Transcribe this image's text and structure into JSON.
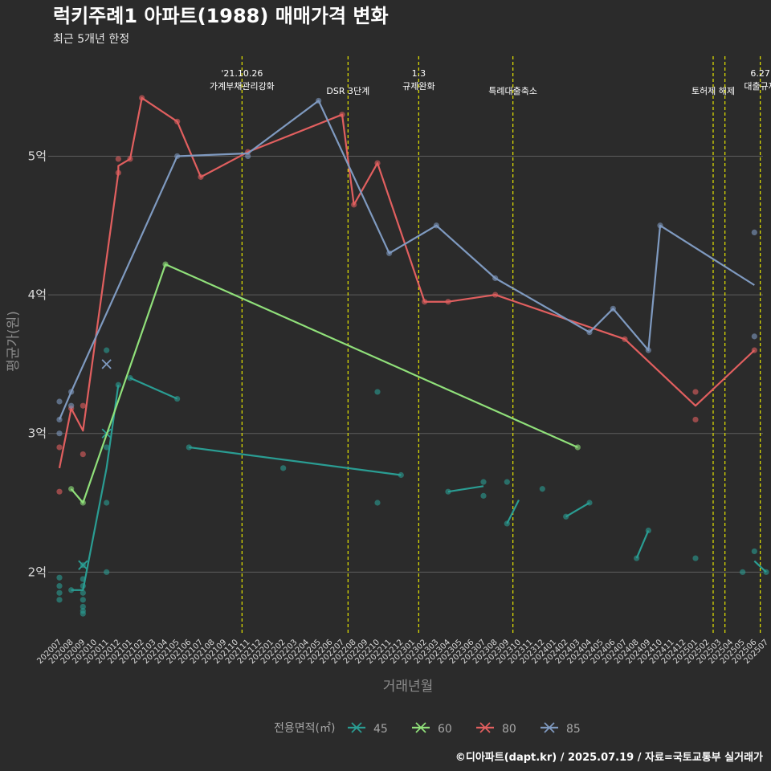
{
  "chart_data": {
    "type": "line",
    "title": "럭키주례1 아파트(1988) 매매가격 변화",
    "subtitle": "최근 5개년 한정",
    "xlabel": "거래년월",
    "ylabel": "평균가(원)",
    "caption": "©디아파트(dapt.kr) / 2025.07.19 / 자료=국토교통부 실거래가",
    "legend_title": "전용면적(㎡)",
    "legend_position": "bottom",
    "ylim": [
      1.55,
      5.75
    ],
    "yticks": [
      {
        "value": 2,
        "label": "2억"
      },
      {
        "value": 3,
        "label": "3억"
      },
      {
        "value": 4,
        "label": "4억"
      },
      {
        "value": 5,
        "label": "5억"
      }
    ],
    "x_categories": [
      "202007",
      "202008",
      "202009",
      "202010",
      "202011",
      "202012",
      "202101",
      "202102",
      "202103",
      "202104",
      "202105",
      "202106",
      "202107",
      "202108",
      "202109",
      "202110",
      "202111",
      "202112",
      "202201",
      "202202",
      "202203",
      "202204",
      "202205",
      "202206",
      "202207",
      "202208",
      "202209",
      "202210",
      "202211",
      "202212",
      "202301",
      "202302",
      "202303",
      "202304",
      "202305",
      "202306",
      "202307",
      "202308",
      "202309",
      "202310",
      "202311",
      "202312",
      "202401",
      "202402",
      "202403",
      "202404",
      "202405",
      "202406",
      "202407",
      "202408",
      "202409",
      "202410",
      "202411",
      "202412",
      "202501",
      "202502",
      "202503",
      "202504",
      "202505",
      "202506",
      "202507"
    ],
    "events": [
      {
        "x": 15.5,
        "lines": [
          "'21.10.26",
          "가계부채관리강화"
        ]
      },
      {
        "x": 24.5,
        "lines": [
          "DSR 3단계"
        ]
      },
      {
        "x": 30.5,
        "lines": [
          "1.3",
          "규제완화"
        ]
      },
      {
        "x": 38.5,
        "lines": [
          "특례대출축소"
        ]
      },
      {
        "x": 55.5,
        "lines": [
          "토허제 해제"
        ]
      },
      {
        "x": 56.5,
        "lines": []
      },
      {
        "x": 59.5,
        "lines": [
          "6.27",
          "대출규제"
        ]
      }
    ],
    "series": [
      {
        "name": "45",
        "color": "#2a9d93",
        "line": [
          [
            1,
            1.87
          ],
          [
            2,
            1.87
          ],
          [
            4,
            2.75
          ],
          [
            5,
            3.35
          ],
          [
            6,
            3.4
          ],
          [
            10,
            3.25
          ],
          [
            11,
            2.9
          ],
          [
            29,
            2.7
          ],
          [
            33,
            2.58
          ],
          [
            36,
            2.62
          ],
          [
            38,
            2.35
          ],
          [
            39,
            2.52
          ],
          [
            43,
            2.4
          ],
          [
            45,
            2.5
          ],
          [
            49,
            2.1
          ],
          [
            50,
            2.3
          ],
          [
            59,
            2.08
          ],
          [
            60,
            2.0
          ]
        ],
        "line_breaks": [
          4,
          6,
          8,
          10,
          12,
          14,
          16
        ],
        "points": [
          [
            0,
            1.96
          ],
          [
            0,
            1.9
          ],
          [
            0,
            1.85
          ],
          [
            0,
            1.8
          ],
          [
            1,
            1.87
          ],
          [
            2,
            2.05
          ],
          [
            2,
            1.95
          ],
          [
            2,
            1.9
          ],
          [
            2,
            1.85
          ],
          [
            2,
            1.8
          ],
          [
            2,
            1.75
          ],
          [
            2,
            1.72
          ],
          [
            2,
            1.7
          ],
          [
            4,
            3.6
          ],
          [
            4,
            2.9
          ],
          [
            4,
            2.5
          ],
          [
            4,
            2.0
          ],
          [
            5,
            3.35
          ],
          [
            6,
            3.4
          ],
          [
            10,
            3.25
          ],
          [
            11,
            2.9
          ],
          [
            19,
            2.75
          ],
          [
            27,
            3.3
          ],
          [
            27,
            2.5
          ],
          [
            29,
            2.7
          ],
          [
            33,
            2.58
          ],
          [
            36,
            2.65
          ],
          [
            36,
            2.55
          ],
          [
            38,
            2.65
          ],
          [
            38,
            2.35
          ],
          [
            41,
            2.6
          ],
          [
            43,
            2.4
          ],
          [
            45,
            2.5
          ],
          [
            49,
            2.1
          ],
          [
            50,
            2.3
          ],
          [
            54,
            2.1
          ],
          [
            58,
            2.0
          ],
          [
            59,
            2.15
          ],
          [
            60,
            2.0
          ]
        ],
        "x_marks": [
          [
            2,
            2.05
          ],
          [
            4,
            3.0
          ]
        ]
      },
      {
        "name": "60",
        "color": "#90e07a",
        "line": [
          [
            1,
            2.6
          ],
          [
            2,
            2.5
          ],
          [
            9,
            4.22
          ],
          [
            44,
            2.9
          ]
        ],
        "line_breaks": [],
        "points": [
          [
            1,
            2.6
          ],
          [
            2,
            2.5
          ],
          [
            9,
            4.22
          ],
          [
            44,
            2.9
          ]
        ],
        "x_marks": []
      },
      {
        "name": "80",
        "color": "#e15f5f",
        "line": [
          [
            0,
            2.75
          ],
          [
            1,
            3.18
          ],
          [
            2,
            3.02
          ],
          [
            5,
            4.88
          ],
          [
            5,
            4.93
          ],
          [
            6,
            4.98
          ],
          [
            7,
            5.42
          ],
          [
            10,
            5.25
          ],
          [
            12,
            4.85
          ],
          [
            16,
            5.03
          ],
          [
            24,
            5.3
          ],
          [
            25,
            4.65
          ],
          [
            27,
            4.95
          ],
          [
            31,
            3.95
          ],
          [
            33,
            3.95
          ],
          [
            37,
            4.0
          ],
          [
            48,
            3.68
          ],
          [
            54,
            3.2
          ],
          [
            59,
            3.6
          ]
        ],
        "line_breaks": [],
        "points": [
          [
            0,
            2.9
          ],
          [
            0,
            2.58
          ],
          [
            1,
            3.18
          ],
          [
            2,
            3.2
          ],
          [
            2,
            2.85
          ],
          [
            5,
            4.98
          ],
          [
            5,
            4.88
          ],
          [
            6,
            4.98
          ],
          [
            7,
            5.42
          ],
          [
            10,
            5.25
          ],
          [
            12,
            4.85
          ],
          [
            16,
            5.03
          ],
          [
            24,
            5.3
          ],
          [
            25,
            4.65
          ],
          [
            27,
            4.95
          ],
          [
            31,
            3.95
          ],
          [
            33,
            3.95
          ],
          [
            37,
            4.0
          ],
          [
            48,
            3.68
          ],
          [
            54,
            3.3
          ],
          [
            54,
            3.1
          ],
          [
            59,
            3.6
          ]
        ],
        "x_marks": []
      },
      {
        "name": "85",
        "color": "#7f9ac0",
        "line": [
          [
            0,
            3.1
          ],
          [
            1,
            3.3
          ],
          [
            10,
            5.0
          ],
          [
            16,
            5.02
          ],
          [
            22,
            5.4
          ],
          [
            28,
            4.3
          ],
          [
            32,
            4.5
          ],
          [
            37,
            4.12
          ],
          [
            45,
            3.73
          ],
          [
            47,
            3.9
          ],
          [
            50,
            3.6
          ],
          [
            51,
            4.5
          ],
          [
            59,
            4.07
          ]
        ],
        "line_breaks": [],
        "points": [
          [
            0,
            3.23
          ],
          [
            0,
            3.1
          ],
          [
            0,
            3.0
          ],
          [
            1,
            3.3
          ],
          [
            1,
            3.2
          ],
          [
            10,
            5.0
          ],
          [
            16,
            5.0
          ],
          [
            22,
            5.4
          ],
          [
            28,
            4.3
          ],
          [
            32,
            4.5
          ],
          [
            37,
            4.12
          ],
          [
            45,
            3.73
          ],
          [
            47,
            3.9
          ],
          [
            50,
            3.6
          ],
          [
            51,
            4.5
          ],
          [
            59,
            4.45
          ],
          [
            59,
            3.7
          ]
        ],
        "x_marks": [
          [
            4,
            3.5
          ]
        ]
      }
    ]
  }
}
